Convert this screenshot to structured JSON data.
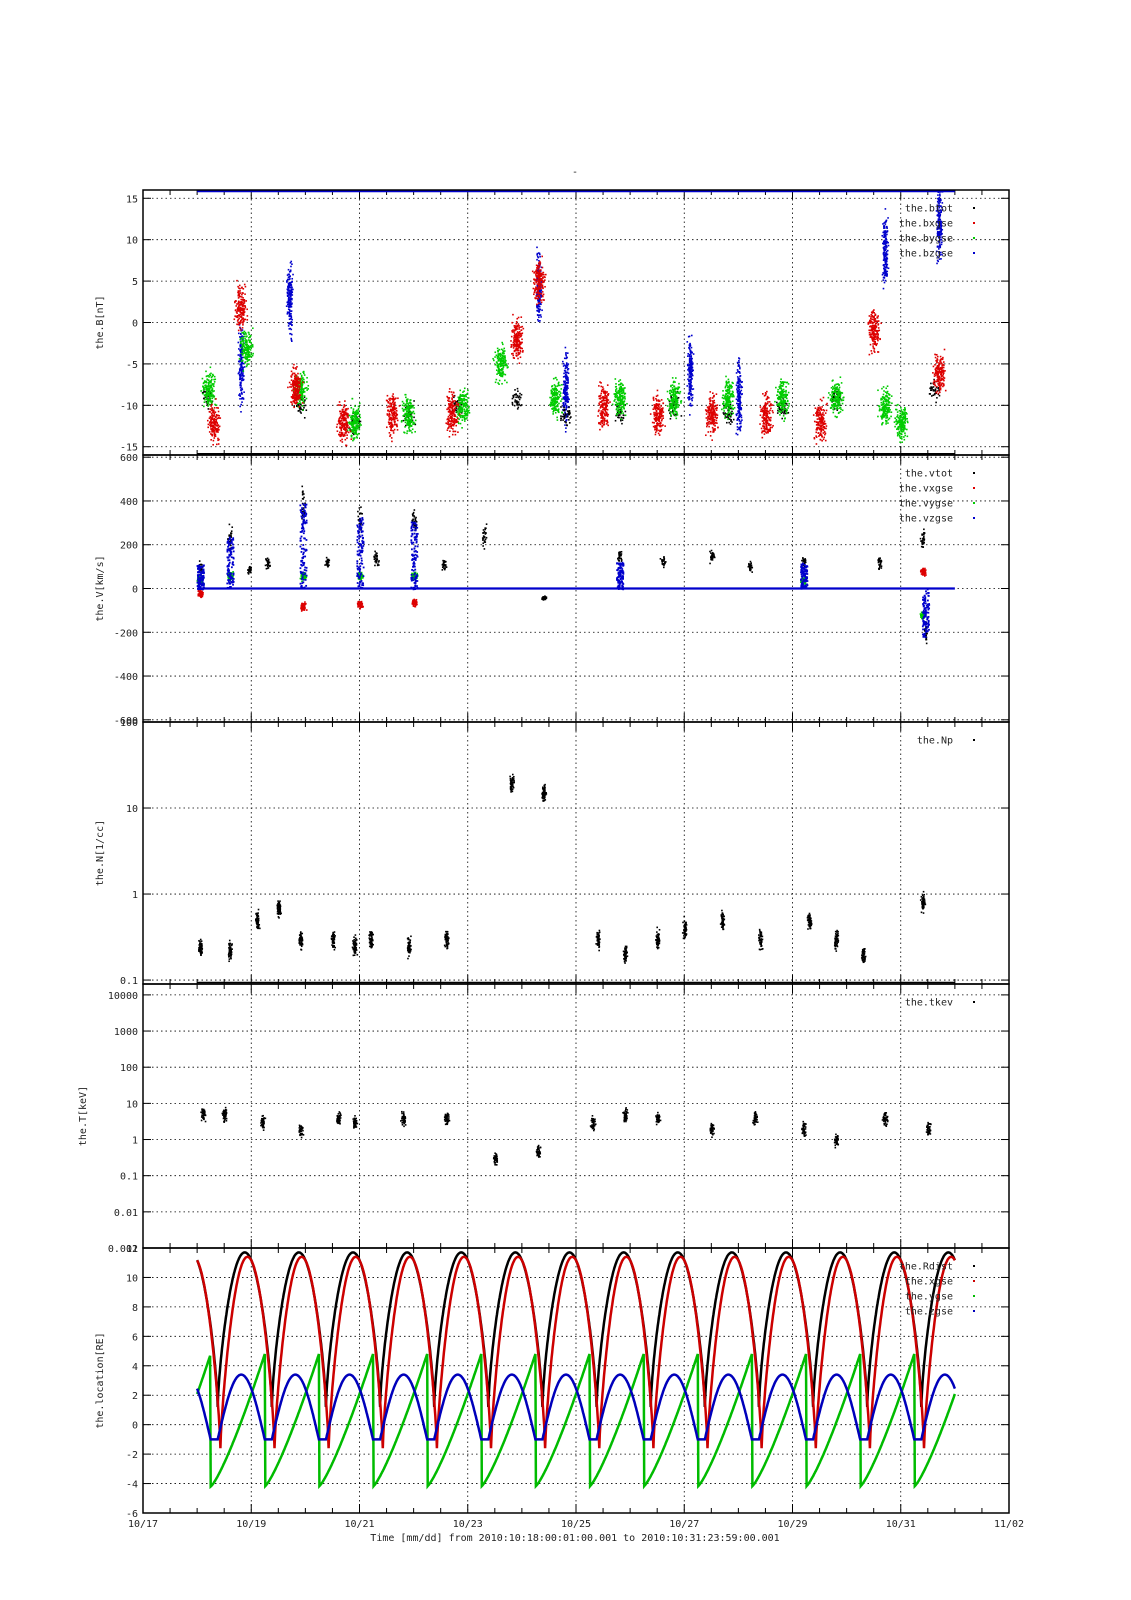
{
  "figure": {
    "title": "-",
    "xlabel": "Time [mm/dd]  from 2010:10:18:00:01:00.001  to  2010:10:31:23:59:00.001",
    "x_tick_labels": [
      "10/17",
      "10/19",
      "10/21",
      "10/23",
      "10/25",
      "10/27",
      "10/29",
      "10/31",
      "11/02"
    ],
    "x_range_days": [
      0,
      16
    ],
    "x_ticks_days": [
      0,
      2,
      4,
      6,
      8,
      10,
      12,
      14,
      16
    ],
    "grid": true
  },
  "chart_data": [
    {
      "type": "scatter",
      "ylabel": "the.B[nT]",
      "ylim": [
        -16,
        16
      ],
      "y_ticks": [
        15,
        10,
        5,
        0,
        -5,
        -10,
        -15
      ],
      "y_tick_labels": [
        "15",
        "10",
        "5",
        "0",
        "-5",
        "-10",
        "-15"
      ],
      "legend_position": "top-right",
      "series": [
        {
          "name": "the.btot",
          "color": "#000000"
        },
        {
          "name": "the.bxgse",
          "color": "#dd0000"
        },
        {
          "name": "the.bygse",
          "color": "#00cc00"
        },
        {
          "name": "the.bzgse",
          "color": "#0000cc"
        }
      ],
      "baseline_at_top": {
        "from_day": 1.0,
        "to_day": 15.0,
        "y": 16
      },
      "clusters_btot": [
        {
          "day": 1.2,
          "y": -9
        },
        {
          "day": 2.9,
          "y": -10
        },
        {
          "day": 3.9,
          "y": -12
        },
        {
          "day": 4.9,
          "y": -11
        },
        {
          "day": 5.8,
          "y": -10
        },
        {
          "day": 6.9,
          "y": -9
        },
        {
          "day": 7.8,
          "y": -11
        },
        {
          "day": 8.8,
          "y": -11
        },
        {
          "day": 9.8,
          "y": -10
        },
        {
          "day": 10.8,
          "y": -11
        },
        {
          "day": 11.8,
          "y": -10
        },
        {
          "day": 12.8,
          "y": -9
        },
        {
          "day": 14.6,
          "y": -8
        }
      ],
      "clusters_bx": [
        {
          "day": 1.3,
          "y": -12
        },
        {
          "day": 1.8,
          "y": 2
        },
        {
          "day": 2.8,
          "y": -8
        },
        {
          "day": 3.7,
          "y": -12
        },
        {
          "day": 4.6,
          "y": -11
        },
        {
          "day": 5.7,
          "y": -11
        },
        {
          "day": 6.9,
          "y": -2
        },
        {
          "day": 7.3,
          "y": 5
        },
        {
          "day": 8.5,
          "y": -10
        },
        {
          "day": 9.5,
          "y": -11
        },
        {
          "day": 10.5,
          "y": -11
        },
        {
          "day": 11.5,
          "y": -11
        },
        {
          "day": 12.5,
          "y": -12
        },
        {
          "day": 13.5,
          "y": -1
        },
        {
          "day": 14.7,
          "y": -6
        }
      ],
      "clusters_by": [
        {
          "day": 1.2,
          "y": -8
        },
        {
          "day": 1.9,
          "y": -3
        },
        {
          "day": 2.9,
          "y": -8
        },
        {
          "day": 3.9,
          "y": -12
        },
        {
          "day": 4.9,
          "y": -11
        },
        {
          "day": 5.9,
          "y": -10
        },
        {
          "day": 6.6,
          "y": -5
        },
        {
          "day": 7.6,
          "y": -9
        },
        {
          "day": 8.8,
          "y": -9
        },
        {
          "day": 9.8,
          "y": -9
        },
        {
          "day": 10.8,
          "y": -9
        },
        {
          "day": 11.8,
          "y": -9
        },
        {
          "day": 12.8,
          "y": -9
        },
        {
          "day": 13.7,
          "y": -10
        },
        {
          "day": 14.0,
          "y": -12
        }
      ],
      "clusters_bz": [
        {
          "day": 1.8,
          "y": -5
        },
        {
          "day": 2.7,
          "y": 3
        },
        {
          "day": 7.3,
          "y": 4
        },
        {
          "day": 7.8,
          "y": -8
        },
        {
          "day": 10.1,
          "y": -6
        },
        {
          "day": 11.0,
          "y": -9
        },
        {
          "day": 13.7,
          "y": 9
        },
        {
          "day": 14.7,
          "y": 12
        }
      ]
    },
    {
      "type": "scatter",
      "ylabel": "the.V[km/s]",
      "ylim": [
        -610,
        610
      ],
      "y_ticks": [
        600,
        400,
        200,
        0,
        -200,
        -400,
        -600
      ],
      "y_tick_labels": [
        "600",
        "400",
        "200",
        "0",
        "-200",
        "-400",
        "-600"
      ],
      "legend_position": "top-right",
      "series": [
        {
          "name": "the.vtot",
          "color": "#000000"
        },
        {
          "name": "the.vxgse",
          "color": "#dd0000"
        },
        {
          "name": "the.vygse",
          "color": "#00cc00"
        },
        {
          "name": "the.vzgse",
          "color": "#0000cc"
        }
      ],
      "baseline": {
        "from_day": 1.0,
        "to_day": 15.0,
        "y": 0
      },
      "spikes_vtot": [
        {
          "day": 1.05,
          "y": 100
        },
        {
          "day": 1.6,
          "y": 230
        },
        {
          "day": 1.95,
          "y": 90
        },
        {
          "day": 2.3,
          "y": 120
        },
        {
          "day": 2.95,
          "y": 380
        },
        {
          "day": 3.4,
          "y": 120
        },
        {
          "day": 4.0,
          "y": 320
        },
        {
          "day": 4.3,
          "y": 140
        },
        {
          "day": 5.0,
          "y": 310
        },
        {
          "day": 5.55,
          "y": 110
        },
        {
          "day": 6.3,
          "y": 250
        },
        {
          "day": 7.4,
          "y": -40
        },
        {
          "day": 8.8,
          "y": 150
        },
        {
          "day": 9.6,
          "y": 130
        },
        {
          "day": 10.5,
          "y": 150
        },
        {
          "day": 11.2,
          "y": 100
        },
        {
          "day": 12.2,
          "y": 120
        },
        {
          "day": 13.6,
          "y": 120
        },
        {
          "day": 14.4,
          "y": 220
        },
        {
          "day": 14.45,
          "y": -200
        }
      ],
      "spikes_vx": [
        {
          "day": 1.05,
          "y": -20
        },
        {
          "day": 2.95,
          "y": -80
        },
        {
          "day": 4.0,
          "y": -70
        },
        {
          "day": 5.0,
          "y": -60
        },
        {
          "day": 14.4,
          "y": 80
        }
      ],
      "spikes_vy": [
        {
          "day": 1.05,
          "y": 40
        },
        {
          "day": 1.6,
          "y": 60
        },
        {
          "day": 2.95,
          "y": 60
        },
        {
          "day": 4.0,
          "y": 60
        },
        {
          "day": 5.0,
          "y": 60
        },
        {
          "day": 12.2,
          "y": 40
        },
        {
          "day": 14.4,
          "y": -120
        }
      ],
      "spikes_vz": [
        {
          "day": 1.05,
          "y": 110
        },
        {
          "day": 1.6,
          "y": 240
        },
        {
          "day": 2.95,
          "y": 390
        },
        {
          "day": 4.0,
          "y": 330
        },
        {
          "day": 5.0,
          "y": 310
        },
        {
          "day": 8.8,
          "y": 130
        },
        {
          "day": 12.2,
          "y": 120
        },
        {
          "day": 14.45,
          "y": -220
        }
      ]
    },
    {
      "type": "scatter",
      "ylabel": "the.N[1/cc]",
      "yscale": "log",
      "ylim": [
        0.09,
        100
      ],
      "y_ticks": [
        100,
        10,
        1,
        0.1
      ],
      "y_tick_labels": [
        "100",
        "10",
        "1",
        "0.1"
      ],
      "legend_position": "top-right",
      "series": [
        {
          "name": "the.Np",
          "color": "#000000"
        }
      ],
      "clusters": [
        {
          "day": 1.05,
          "y": 0.25
        },
        {
          "day": 1.6,
          "y": 0.22
        },
        {
          "day": 2.1,
          "y": 0.5
        },
        {
          "day": 2.5,
          "y": 0.7
        },
        {
          "day": 2.9,
          "y": 0.3
        },
        {
          "day": 3.5,
          "y": 0.3
        },
        {
          "day": 3.9,
          "y": 0.25
        },
        {
          "day": 4.2,
          "y": 0.3
        },
        {
          "day": 4.9,
          "y": 0.25
        },
        {
          "day": 5.6,
          "y": 0.3
        },
        {
          "day": 6.8,
          "y": 20
        },
        {
          "day": 7.4,
          "y": 15
        },
        {
          "day": 8.4,
          "y": 0.3
        },
        {
          "day": 8.9,
          "y": 0.2
        },
        {
          "day": 9.5,
          "y": 0.3
        },
        {
          "day": 10.0,
          "y": 0.4
        },
        {
          "day": 10.7,
          "y": 0.5
        },
        {
          "day": 11.4,
          "y": 0.3
        },
        {
          "day": 12.3,
          "y": 0.5
        },
        {
          "day": 12.8,
          "y": 0.3
        },
        {
          "day": 13.3,
          "y": 0.2
        },
        {
          "day": 14.4,
          "y": 0.8
        }
      ]
    },
    {
      "type": "scatter",
      "ylabel": "the.T[keV]",
      "yscale": "log",
      "ylim": [
        0.001,
        20000
      ],
      "y_ticks": [
        10000,
        1000,
        100,
        10,
        1,
        0.1,
        0.01,
        0.001
      ],
      "y_tick_labels": [
        "10000",
        "1000",
        "100",
        "10",
        "1",
        "0.1",
        "0.01",
        "0.001"
      ],
      "legend_position": "top-right",
      "series": [
        {
          "name": "the.tkev",
          "color": "#000000"
        }
      ],
      "clusters": [
        {
          "day": 1.1,
          "y": 5
        },
        {
          "day": 1.5,
          "y": 5
        },
        {
          "day": 2.2,
          "y": 3
        },
        {
          "day": 2.9,
          "y": 2
        },
        {
          "day": 3.6,
          "y": 4
        },
        {
          "day": 3.9,
          "y": 3
        },
        {
          "day": 4.8,
          "y": 4
        },
        {
          "day": 5.6,
          "y": 4
        },
        {
          "day": 6.5,
          "y": 0.3
        },
        {
          "day": 7.3,
          "y": 0.5
        },
        {
          "day": 8.3,
          "y": 3
        },
        {
          "day": 8.9,
          "y": 5
        },
        {
          "day": 9.5,
          "y": 4
        },
        {
          "day": 10.5,
          "y": 2
        },
        {
          "day": 11.3,
          "y": 4
        },
        {
          "day": 12.2,
          "y": 2
        },
        {
          "day": 12.8,
          "y": 1
        },
        {
          "day": 13.7,
          "y": 4
        },
        {
          "day": 14.5,
          "y": 2
        }
      ]
    },
    {
      "type": "line",
      "ylabel": "the.location[RE]",
      "ylim": [
        -6,
        12
      ],
      "y_ticks": [
        12,
        10,
        8,
        6,
        4,
        2,
        0,
        -2,
        -4,
        -6
      ],
      "y_tick_labels": [
        "12",
        "10",
        "8",
        "6",
        "4",
        "2",
        "0",
        "-2",
        "-4",
        "-6"
      ],
      "legend_position": "top-right",
      "series": [
        {
          "name": "the.Rdist",
          "color": "#000000"
        },
        {
          "name": "the.xgse",
          "color": "#cc0000"
        },
        {
          "name": "the.ygse",
          "color": "#00bb00"
        },
        {
          "name": "the.zgse",
          "color": "#0000bb"
        }
      ],
      "orbit": {
        "start_day": 1.0,
        "end_day": 15.0,
        "period_days": 1.0,
        "rdist_range": [
          1.2,
          11.7
        ],
        "xgse_range": [
          -1.6,
          11.4
        ],
        "ygse_range": [
          -4.2,
          4.8
        ],
        "zgse_range": [
          -1.0,
          3.4
        ]
      }
    }
  ]
}
